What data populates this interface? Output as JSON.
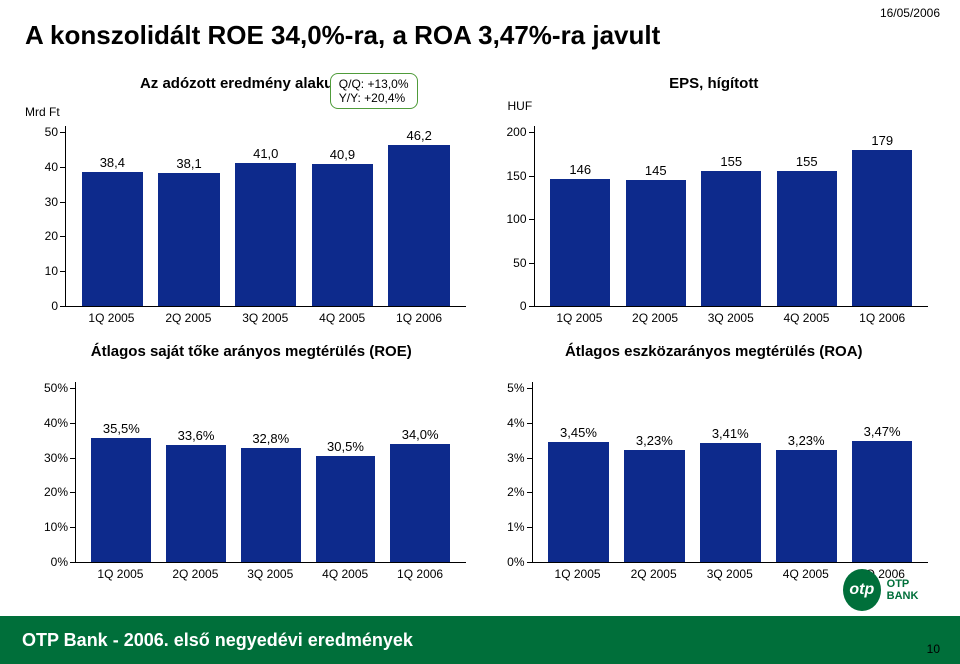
{
  "date": "16/05/2006",
  "title": "A konszolidált ROE 34,0%-ra, a ROA 3,47%-ra javult",
  "footer": "OTP Bank - 2006. első negyedévi eredmények",
  "page_number": "10",
  "logo": {
    "circle_text": "otp",
    "label": "OTP BANK"
  },
  "styles": {
    "bar_color": "#0d2a8c",
    "axis_color": "#000000",
    "background": "#ffffff",
    "qq_border": "#4f9b3a",
    "footer_bg": "#006f3a",
    "font": "Arial"
  },
  "chart1": {
    "type": "bar",
    "title": "Az adózott eredmény alakulása",
    "unit": "Mrd Ft",
    "qq": {
      "line1": "Q/Q: +13,0%",
      "line2": "Y/Y: +20,4%"
    },
    "ymin": 0,
    "ymax": 50,
    "ytick_step": 10,
    "categories": [
      "1Q 2005",
      "2Q 2005",
      "3Q 2005",
      "4Q 2005",
      "1Q 2006"
    ],
    "values": [
      38.4,
      38.1,
      41.0,
      40.9,
      46.2
    ],
    "value_labels": [
      "38,4",
      "38,1",
      "41,0",
      "40,9",
      "46,2"
    ],
    "bar_width": 0.8
  },
  "chart2": {
    "type": "bar",
    "title": "EPS, hígított",
    "unit": "HUF",
    "ymin": 0,
    "ymax": 200,
    "ytick_step": 50,
    "categories": [
      "1Q 2005",
      "2Q 2005",
      "3Q 2005",
      "4Q 2005",
      "1Q 2006"
    ],
    "values": [
      146,
      145,
      155,
      155,
      179
    ],
    "value_labels": [
      "146",
      "145",
      "155",
      "155",
      "179"
    ],
    "bar_width": 0.8
  },
  "chart3": {
    "type": "bar",
    "title": "Átlagos saját tőke arányos megtérülés (ROE)",
    "ymin": 0,
    "ymax": 50,
    "ytick_step": 10,
    "ytick_suffix": "%",
    "categories": [
      "1Q 2005",
      "2Q 2005",
      "3Q 2005",
      "4Q 2005",
      "1Q 2006"
    ],
    "values": [
      35.5,
      33.6,
      32.8,
      30.5,
      34.0
    ],
    "value_labels": [
      "35,5%",
      "33,6%",
      "32,8%",
      "30,5%",
      "34,0%"
    ],
    "bar_width": 0.8
  },
  "chart4": {
    "type": "bar",
    "title": "Átlagos eszközarányos megtérülés (ROA)",
    "ymin": 0,
    "ymax": 5,
    "ytick_step": 1,
    "ytick_suffix": "%",
    "categories": [
      "1Q 2005",
      "2Q 2005",
      "3Q 2005",
      "4Q 2005",
      "1Q 2006"
    ],
    "values": [
      3.45,
      3.23,
      3.41,
      3.23,
      3.47
    ],
    "value_labels": [
      "3,45%",
      "3,23%",
      "3,41%",
      "3,23%",
      "3,47%"
    ],
    "bar_width": 0.8
  }
}
